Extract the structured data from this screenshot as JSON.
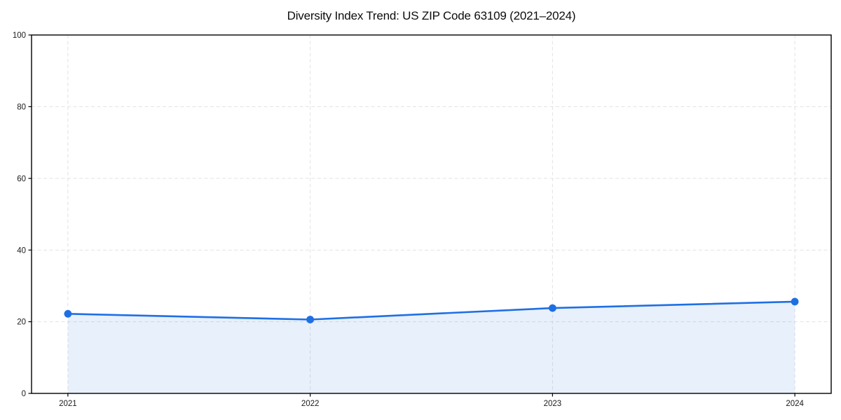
{
  "chart": {
    "title": "Diversity Index Trend: US ZIP Code 63109 (2021–2024)"
  },
  "chart_data": {
    "type": "area",
    "title": "Diversity Index Trend: US ZIP Code 63109 (2021–2024)",
    "x": [
      2021,
      2022,
      2023,
      2024
    ],
    "series": [
      {
        "name": "Diversity Index",
        "values": [
          22.2,
          20.6,
          23.8,
          25.6
        ]
      }
    ],
    "xlabel": "",
    "ylabel": "",
    "xlim": [
      2020.85,
      2024.15
    ],
    "ylim": [
      0,
      100
    ],
    "xticks": [
      "2021",
      "2022",
      "2023",
      "2024"
    ],
    "xtick_values": [
      2021,
      2022,
      2023,
      2024
    ],
    "yticks": [
      "0",
      "20",
      "40",
      "60",
      "80",
      "100"
    ],
    "ytick_values": [
      0,
      20,
      40,
      60,
      80,
      100
    ],
    "grid": true,
    "grid_style": "dashed",
    "legend_position": "none",
    "colors": {
      "line": "#1f6fe4",
      "marker": "#1f6fe4",
      "fill": "rgba(31, 111, 228, 0.10)",
      "gridline": "#e2e2e2",
      "spine": "#000000",
      "tick_label": "#1a1a1a",
      "background": "#ffffff"
    }
  }
}
